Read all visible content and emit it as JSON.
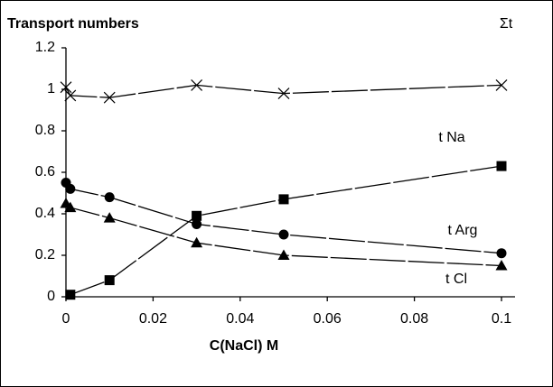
{
  "chart_data": {
    "type": "scatter",
    "title": "Transport numbers",
    "x_label": "C(NaCl)   M",
    "xlim": [
      0,
      0.1
    ],
    "xticks": [
      0,
      0.02,
      0.04,
      0.06,
      0.08,
      0.1
    ],
    "ylim": [
      0,
      1.2
    ],
    "yticks": [
      0,
      0.2,
      0.4,
      0.6,
      0.8,
      1,
      1.2
    ],
    "series": [
      {
        "name": "Σt",
        "marker": "cross",
        "color": "#000000",
        "x": [
          0,
          0.001,
          0.01,
          0.03,
          0.05,
          0.1
        ],
        "values": [
          1.01,
          0.97,
          0.96,
          1.02,
          0.98,
          1.02
        ]
      },
      {
        "name": "t Na",
        "marker": "square",
        "color": "#000000",
        "x": [
          0.001,
          0.01,
          0.03,
          0.05,
          0.1
        ],
        "values": [
          0.01,
          0.08,
          0.39,
          0.47,
          0.63
        ]
      },
      {
        "name": "t Arg",
        "marker": "circle",
        "color": "#000000",
        "x": [
          0,
          0.001,
          0.01,
          0.03,
          0.05,
          0.1
        ],
        "values": [
          0.55,
          0.52,
          0.48,
          0.35,
          0.3,
          0.21
        ]
      },
      {
        "name": "t Cl",
        "marker": "triangle",
        "color": "#000000",
        "x": [
          0,
          0.001,
          0.01,
          0.03,
          0.05,
          0.1
        ],
        "values": [
          0.45,
          0.43,
          0.38,
          0.26,
          0.2,
          0.15
        ]
      }
    ]
  }
}
